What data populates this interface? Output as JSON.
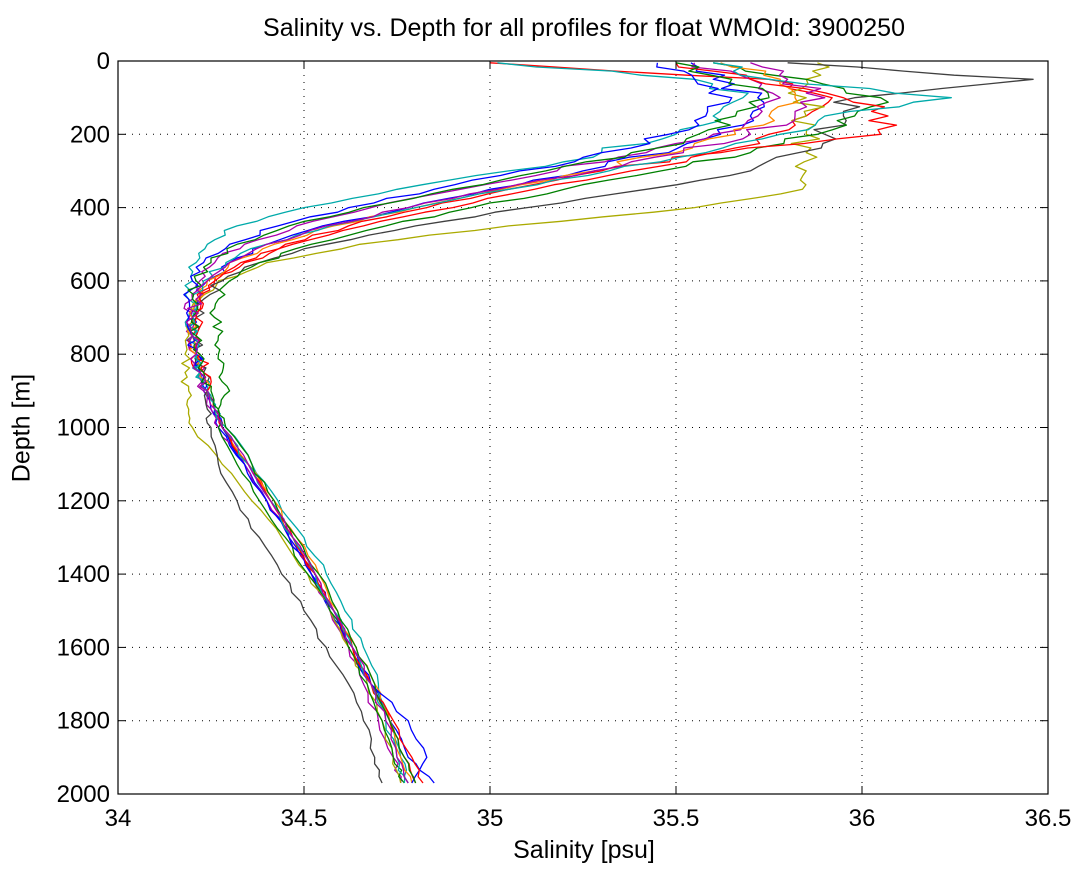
{
  "chart_data": {
    "type": "line",
    "title": "Salinity vs. Depth for all profiles for float WMOId: 3900250",
    "xlabel": "Salinity [psu]",
    "ylabel": "Depth [m]",
    "xlim": [
      34,
      36.5
    ],
    "ylim": [
      0,
      2000
    ],
    "y_inverted": true,
    "grid": "dotted",
    "legend": "none",
    "xticks": [
      "34",
      "34.5",
      "35",
      "35.5",
      "36",
      "36.5"
    ],
    "yticks": [
      "0",
      "200",
      "400",
      "600",
      "800",
      "1000",
      "1200",
      "1400",
      "1600",
      "1800",
      "2000"
    ],
    "xtick_values": [
      34,
      34.5,
      35,
      35.5,
      36,
      36.5
    ],
    "ytick_values": [
      0,
      200,
      400,
      600,
      800,
      1000,
      1200,
      1400,
      1600,
      1800,
      2000
    ],
    "colors": [
      "#0000ff",
      "#ff0000",
      "#00aaaa",
      "#aa00aa",
      "#aaaa00",
      "#404040",
      "#008000",
      "#ff8800"
    ],
    "depths": [
      5,
      50,
      100,
      150,
      200,
      250,
      300,
      350,
      400,
      450,
      500,
      550,
      600,
      650,
      700,
      750,
      800,
      850,
      900,
      950,
      1000,
      1100,
      1200,
      1300,
      1400,
      1500,
      1600,
      1700,
      1800,
      1900,
      1970
    ],
    "series": [
      {
        "color": "#0000ff",
        "values": [
          35.54,
          35.6,
          35.72,
          35.7,
          35.62,
          35.48,
          35.25,
          35.0,
          34.78,
          34.55,
          34.4,
          34.3,
          34.24,
          34.21,
          34.2,
          34.2,
          34.21,
          34.22,
          34.23,
          34.25,
          34.27,
          34.34,
          34.4,
          34.46,
          34.52,
          34.57,
          34.63,
          34.68,
          34.73,
          34.78,
          34.85
        ]
      },
      {
        "color": "#ff0000",
        "values": [
          35.0,
          35.75,
          35.92,
          35.85,
          35.75,
          35.6,
          35.38,
          35.12,
          34.9,
          34.66,
          34.47,
          34.34,
          34.26,
          34.22,
          34.21,
          34.2,
          34.21,
          34.22,
          34.24,
          34.26,
          34.28,
          34.35,
          34.41,
          34.47,
          34.53,
          34.58,
          34.63,
          34.68,
          34.73,
          34.77,
          34.8
        ]
      },
      {
        "color": "#00aaaa",
        "values": [
          35.02,
          35.55,
          35.68,
          35.6,
          35.5,
          35.3,
          35.05,
          34.75,
          34.5,
          34.32,
          34.24,
          34.21,
          34.2,
          34.19,
          34.19,
          34.2,
          34.21,
          34.22,
          34.24,
          34.26,
          34.29,
          34.36,
          34.43,
          34.5,
          34.56,
          34.61,
          34.66,
          34.7,
          34.73,
          34.76,
          34.78
        ]
      },
      {
        "color": "#aa00aa",
        "values": [
          35.55,
          35.7,
          35.78,
          35.72,
          35.6,
          35.42,
          35.18,
          34.92,
          34.68,
          34.48,
          34.34,
          34.26,
          34.22,
          34.2,
          34.19,
          34.2,
          34.21,
          34.22,
          34.23,
          34.25,
          34.27,
          34.34,
          34.4,
          34.46,
          34.52,
          34.57,
          34.62,
          34.66,
          34.7,
          34.74,
          34.76
        ]
      },
      {
        "color": "#aaaa00",
        "values": [
          35.88,
          35.85,
          35.85,
          35.85,
          35.85,
          35.85,
          35.85,
          35.84,
          35.55,
          35.05,
          34.65,
          34.4,
          34.27,
          34.22,
          34.2,
          34.19,
          34.18,
          34.18,
          34.19,
          34.19,
          34.2,
          34.28,
          34.36,
          34.44,
          34.51,
          34.57,
          34.62,
          34.67,
          34.71,
          34.74,
          34.76
        ]
      },
      {
        "color": "#404040",
        "values": [
          35.8,
          36.46,
          35.98,
          35.95,
          35.9,
          35.83,
          35.7,
          35.42,
          35.1,
          34.8,
          34.56,
          34.38,
          34.28,
          34.23,
          34.21,
          34.21,
          34.22,
          34.23,
          34.24,
          34.24,
          34.25,
          34.27,
          34.32,
          34.38,
          34.44,
          34.5,
          34.56,
          34.62,
          34.66,
          34.69,
          34.71
        ]
      },
      {
        "color": "#008000",
        "values": [
          35.6,
          35.85,
          36.05,
          35.98,
          35.88,
          35.7,
          35.46,
          35.2,
          34.95,
          34.72,
          34.52,
          34.38,
          34.3,
          34.27,
          34.26,
          34.27,
          34.27,
          34.28,
          34.3,
          34.27,
          34.27,
          34.32,
          34.38,
          34.45,
          34.51,
          34.57,
          34.62,
          34.67,
          34.71,
          34.74,
          34.77
        ]
      },
      {
        "color": "#ff8800",
        "values": [
          35.62,
          35.78,
          35.82,
          35.75,
          35.66,
          35.5,
          35.28,
          35.03,
          34.8,
          34.58,
          34.42,
          34.3,
          34.24,
          34.21,
          34.2,
          34.2,
          34.21,
          34.22,
          34.24,
          34.26,
          34.28,
          34.35,
          34.42,
          34.48,
          34.54,
          34.59,
          34.64,
          34.69,
          34.73,
          34.76,
          34.79
        ]
      },
      {
        "color": "#0000ff",
        "values": [
          35.45,
          35.55,
          35.65,
          35.58,
          35.48,
          35.3,
          35.08,
          34.85,
          34.62,
          34.43,
          34.3,
          34.23,
          34.2,
          34.19,
          34.19,
          34.2,
          34.21,
          34.22,
          34.24,
          34.26,
          34.28,
          34.34,
          34.4,
          34.46,
          34.52,
          34.58,
          34.63,
          34.68,
          34.78,
          34.83,
          34.79
        ]
      },
      {
        "color": "#ff0000",
        "values": [
          35.5,
          35.7,
          35.95,
          36.07,
          36.05,
          35.62,
          35.3,
          35.05,
          34.83,
          34.62,
          34.45,
          34.33,
          34.26,
          34.22,
          34.21,
          34.21,
          34.22,
          34.23,
          34.24,
          34.26,
          34.28,
          34.35,
          34.41,
          34.47,
          34.53,
          34.58,
          34.63,
          34.68,
          34.74,
          34.79,
          34.82
        ]
      },
      {
        "color": "#00aaaa",
        "values": [
          35.6,
          35.75,
          36.24,
          35.9,
          35.78,
          35.58,
          35.32,
          35.05,
          34.8,
          34.57,
          34.4,
          34.29,
          34.23,
          34.2,
          34.2,
          34.2,
          34.21,
          34.22,
          34.24,
          34.26,
          34.28,
          34.35,
          34.41,
          34.47,
          34.53,
          34.58,
          34.63,
          34.68,
          34.72,
          34.75,
          34.77
        ]
      },
      {
        "color": "#008000",
        "values": [
          35.5,
          35.65,
          35.75,
          35.66,
          35.56,
          35.38,
          35.15,
          34.9,
          34.66,
          34.46,
          34.32,
          34.25,
          34.21,
          34.2,
          34.2,
          34.21,
          34.22,
          34.23,
          34.25,
          34.27,
          34.29,
          34.36,
          34.42,
          34.48,
          34.54,
          34.59,
          34.64,
          34.69,
          34.73,
          34.77,
          34.8
        ]
      },
      {
        "color": "#aa00aa",
        "values": [
          35.7,
          35.8,
          35.9,
          35.82,
          35.7,
          35.52,
          35.28,
          35.02,
          34.78,
          34.56,
          34.4,
          34.3,
          34.24,
          34.21,
          34.2,
          34.2,
          34.21,
          34.22,
          34.24,
          34.26,
          34.28,
          34.35,
          34.41,
          34.47,
          34.53,
          34.58,
          34.63,
          34.68,
          34.72,
          34.75,
          34.78
        ]
      }
    ]
  }
}
